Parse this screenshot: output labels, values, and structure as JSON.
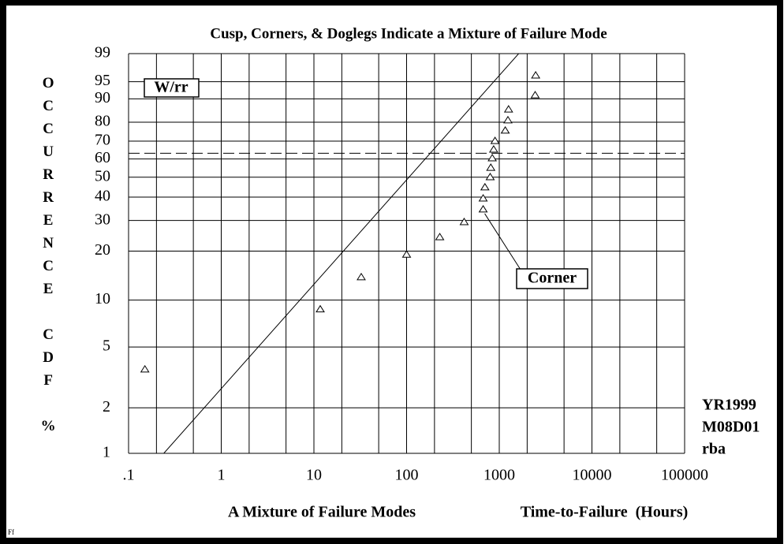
{
  "chart_data": {
    "type": "weibull",
    "title": "Cusp, Corners, & Doglegs Indicate a Mixture of Failure Mode",
    "xlabel": "A Mixture of Failure Modes",
    "xlabel_units": "Time-to-Failure  (Hours)",
    "ylabel": "OCCURRENCE CDF %",
    "x_scale": "log",
    "y_scale": "weibull",
    "xlim": [
      0.1,
      100000
    ],
    "ylim": [
      1,
      99
    ],
    "xticks": [
      {
        "value": 0.1,
        "label": ".1"
      },
      1,
      10,
      100,
      1000,
      10000,
      100000
    ],
    "x_minor_grid": [
      0.2,
      0.5,
      2,
      5,
      20,
      50,
      200,
      500,
      2000,
      5000,
      20000,
      50000
    ],
    "yticks": [
      1,
      2,
      5,
      10,
      20,
      30,
      40,
      50,
      60,
      70,
      80,
      90,
      95,
      99
    ],
    "reference_line": 63.2,
    "points": {
      "x": [
        0.15,
        11.7,
        32.4,
        100,
        228,
        418,
        670,
        670,
        700,
        798,
        810,
        840,
        870,
        900,
        1160,
        1240,
        1260,
        2440,
        2470
      ],
      "y": [
        3.6,
        8.8,
        14,
        19.2,
        24.3,
        29.6,
        34.7,
        39.6,
        45,
        50.3,
        55.4,
        60.7,
        65.6,
        70.4,
        76,
        81.2,
        86.1,
        91.4,
        96.4
      ]
    },
    "fit_line": {
      "x": [
        0.24,
        1620
      ],
      "y": [
        1,
        99
      ]
    },
    "legend_text": "W/rr",
    "annotation": {
      "text": "Corner",
      "point": 6
    },
    "stamp": [
      "YR1999",
      "M08D01",
      "rba"
    ],
    "footer": "Ff"
  }
}
